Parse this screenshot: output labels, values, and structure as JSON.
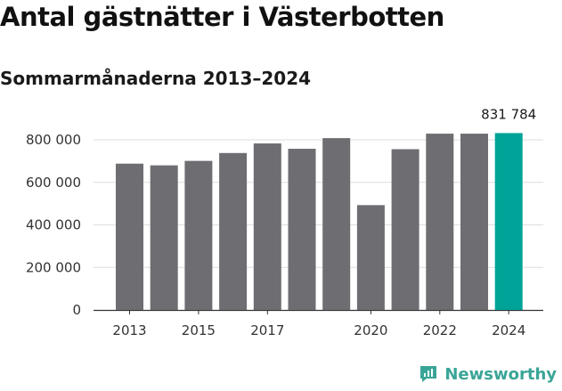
{
  "header": {
    "title": "Antal gästnätter i Västerbotten",
    "subtitle": "Sommarmånaderna 2013–2024"
  },
  "brand": {
    "name": "Newsworthy",
    "icon": "newsworthy-logo-icon",
    "color": "#3aa597"
  },
  "colors": {
    "bar": "#6e6d72",
    "highlight": "#00a398",
    "grid": "#dddddd",
    "axis": "#333333"
  },
  "chart_data": {
    "type": "bar",
    "title": "Antal gästnätter i Västerbotten",
    "subtitle": "Sommarmånaderna 2013–2024",
    "categories": [
      "2013",
      "2014",
      "2015",
      "2016",
      "2017",
      "2018",
      "2019",
      "2020",
      "2021",
      "2022",
      "2023",
      "2024"
    ],
    "values": [
      688000,
      680000,
      701000,
      738000,
      783000,
      758000,
      808000,
      493000,
      756000,
      829000,
      829000,
      831784
    ],
    "x_tick_labels": [
      "2013",
      "2015",
      "2017",
      "2020",
      "2022",
      "2024"
    ],
    "y_ticks": [
      0,
      200000,
      400000,
      600000,
      800000
    ],
    "y_tick_labels": [
      "0",
      "200 000",
      "400 000",
      "600 000",
      "800 000"
    ],
    "ylim": [
      0,
      800000
    ],
    "highlight_category": "2024",
    "annotation": "831 784",
    "xlabel": "",
    "ylabel": "",
    "grid": true
  }
}
